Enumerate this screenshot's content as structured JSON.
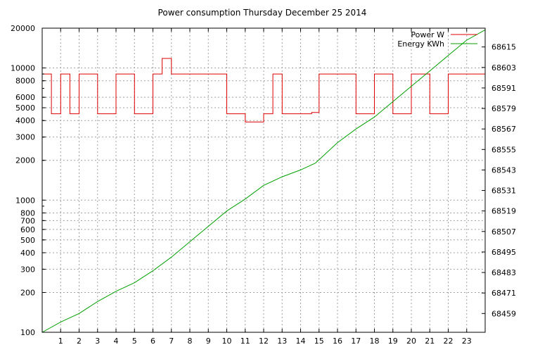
{
  "chart_data": {
    "type": "line",
    "title": "Power consumption Thursday December 25 2014",
    "xlabel": "",
    "ylabel": "",
    "y2label": "",
    "grid": true,
    "legend_position": "top-right",
    "x_ticks": [
      "1",
      "2",
      "3",
      "4",
      "5",
      "6",
      "7",
      "8",
      "9",
      "10",
      "11",
      "12",
      "13",
      "14",
      "15",
      "16",
      "17",
      "18",
      "19",
      "20",
      "21",
      "22",
      "23"
    ],
    "xlim": [
      0,
      24
    ],
    "y_scale": "log",
    "ylim": [
      100,
      20000
    ],
    "y_ticks": [
      "100",
      "200",
      "300",
      "400",
      "500",
      "600",
      "700",
      "800",
      "1000",
      "2000",
      "3000",
      "4000",
      "5000",
      "6000",
      "8000",
      "10000",
      "20000"
    ],
    "y2lim": [
      68448,
      68626
    ],
    "y2_ticks": [
      "68459",
      "68471",
      "68483",
      "68495",
      "68507",
      "68519",
      "68531",
      "68543",
      "68555",
      "68567",
      "68579",
      "68591",
      "68603",
      "68615"
    ],
    "series": [
      {
        "name": "Power W",
        "axis": "left",
        "color": "#dd0000",
        "description_points": [
          [
            0.0,
            9000
          ],
          [
            0.5,
            4500
          ],
          [
            1.0,
            9000
          ],
          [
            1.5,
            4500
          ],
          [
            2.0,
            9000
          ],
          [
            3.0,
            4500
          ],
          [
            4.0,
            9000
          ],
          [
            5.0,
            4500
          ],
          [
            6.0,
            9000
          ],
          [
            6.5,
            11800
          ],
          [
            7.0,
            9000
          ],
          [
            8.0,
            9000
          ],
          [
            9.0,
            9000
          ],
          [
            10.0,
            4500
          ],
          [
            11.0,
            3900
          ],
          [
            12.0,
            4500
          ],
          [
            12.5,
            9000
          ],
          [
            13.0,
            4500
          ],
          [
            14.0,
            4500
          ],
          [
            14.6,
            4600
          ],
          [
            15.0,
            9000
          ],
          [
            16.0,
            9000
          ],
          [
            17.0,
            4500
          ],
          [
            18.0,
            9000
          ],
          [
            19.0,
            4500
          ],
          [
            20.0,
            9000
          ],
          [
            21.0,
            4500
          ],
          [
            22.0,
            9000
          ],
          [
            23.0,
            9000
          ],
          [
            24.0,
            9000
          ]
        ]
      },
      {
        "name": "Energy KWh",
        "axis": "right",
        "color": "#00a000",
        "points": [
          [
            0,
            68448
          ],
          [
            1,
            68454
          ],
          [
            2,
            68459
          ],
          [
            3,
            68466
          ],
          [
            4,
            68472
          ],
          [
            5,
            68477
          ],
          [
            6,
            68484
          ],
          [
            7,
            68492
          ],
          [
            8,
            68501
          ],
          [
            9,
            68510
          ],
          [
            10,
            68519
          ],
          [
            11,
            68526
          ],
          [
            12,
            68534
          ],
          [
            13,
            68539
          ],
          [
            14,
            68543
          ],
          [
            14.8,
            68547
          ],
          [
            15,
            68549
          ],
          [
            16,
            68559
          ],
          [
            17,
            68567
          ],
          [
            18,
            68574
          ],
          [
            19,
            68583
          ],
          [
            20,
            68592
          ],
          [
            21,
            68601
          ],
          [
            22,
            68610
          ],
          [
            23,
            68619
          ],
          [
            24,
            68625
          ]
        ]
      }
    ]
  }
}
